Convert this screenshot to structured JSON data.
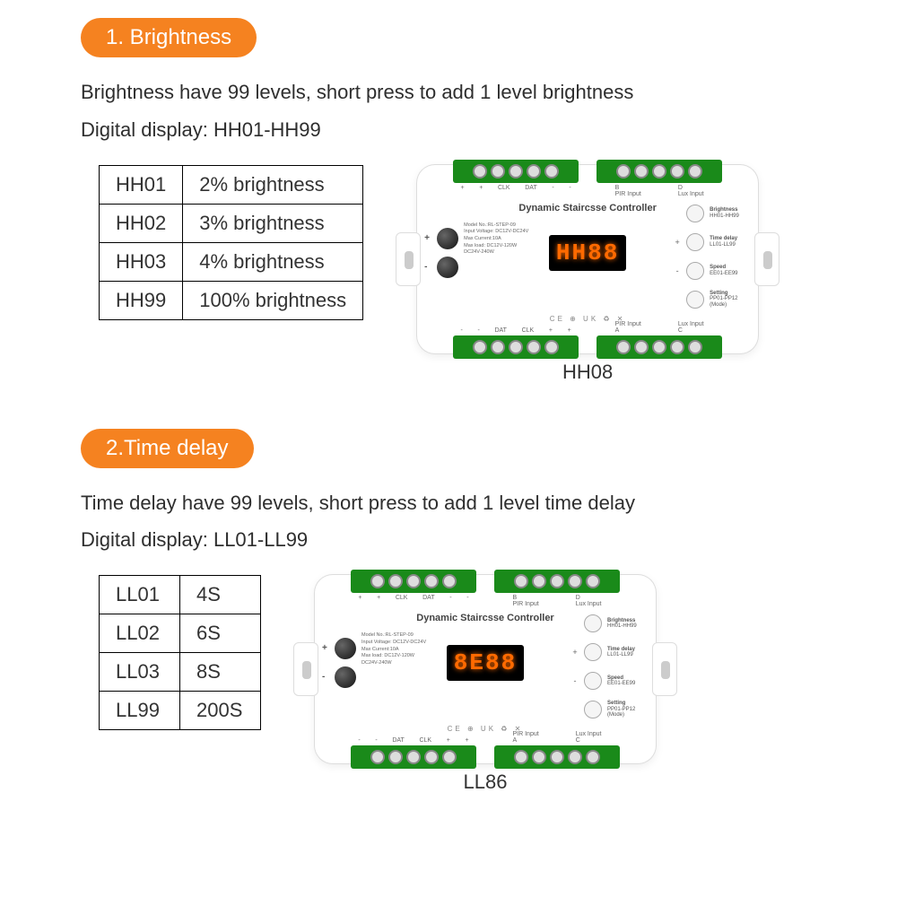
{
  "colors": {
    "accent": "#f58220",
    "terminal": "#1a8a1a",
    "display_bg": "#000000",
    "display_fg": "#ff6a00",
    "text": "#333333"
  },
  "sections": [
    {
      "heading": "1. Brightness",
      "line1": "Brightness have 99 levels, short press to add 1 level brightness",
      "line2": "Digital display: HH01-HH99",
      "table": {
        "rows": [
          [
            "HH01",
            "2% brightness"
          ],
          [
            "HH02",
            "3% brightness"
          ],
          [
            "HH03",
            "4% brightness"
          ],
          [
            "HH99",
            "100% brightness"
          ]
        ]
      },
      "device_display": "HH88",
      "caption": "HH08"
    },
    {
      "heading": "2.Time delay",
      "line1": "Time delay have 99 levels, short press to add 1 level time delay",
      "line2": "Digital display: LL01-LL99",
      "table": {
        "rows": [
          [
            "LL01",
            "4S"
          ],
          [
            "LL02",
            "6S"
          ],
          [
            "LL03",
            "8S"
          ],
          [
            "LL99",
            "200S"
          ]
        ]
      },
      "device_display": "8E88",
      "caption": "LL86"
    }
  ],
  "device": {
    "title": "Dynamic Staircsse Controller",
    "model_lines": [
      "Model No.:RL-STEP-09",
      "Input Voltage: DC12V-DC24V",
      "Max Current:10A",
      "Max load: DC12V-120W",
      "DC24V-240W"
    ],
    "top_pins1": [
      "+",
      "+",
      "CLK",
      "DAT",
      "-",
      "-"
    ],
    "top_port_b": "PIR Input",
    "top_port_b_letter": "B",
    "top_port_d": "Lux Input",
    "top_port_d_letter": "D",
    "bot_pins1": [
      "-",
      "-",
      "DAT",
      "CLK",
      "+",
      "+"
    ],
    "bot_port_a": "PIR Input",
    "bot_port_a_letter": "A",
    "bot_port_c": "Lux Input",
    "bot_port_c_letter": "C",
    "buttons": [
      {
        "sym": "",
        "name": "Brightness",
        "sub": "HH01-HH99"
      },
      {
        "sym": "+",
        "name": "Time delay",
        "sub": "LL01-LL99"
      },
      {
        "sym": "-",
        "name": "Speed",
        "sub": "EE01-EE99"
      },
      {
        "sym": "",
        "name": "Setting",
        "sub": "PP01-PP12 (Mode)"
      }
    ],
    "ce_row": "CE ⊕ UK ♻ ✕"
  }
}
